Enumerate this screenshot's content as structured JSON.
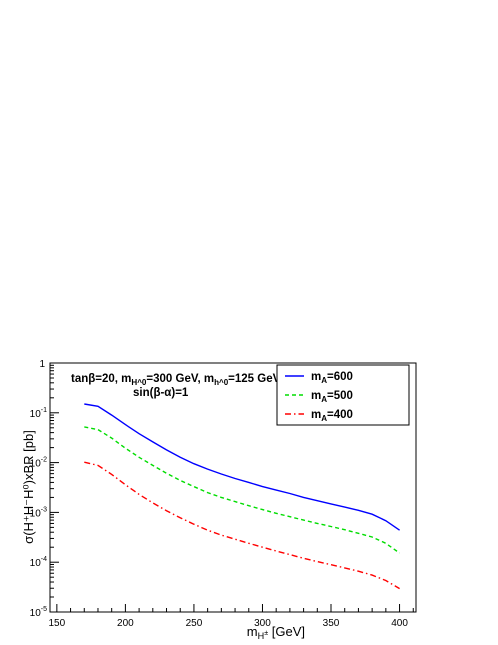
{
  "chart_data": {
    "type": "line",
    "xlabel": "m_{H^{±}} [GeV]",
    "ylabel": "σ(H⁺H⁻H⁰)xBR [pb]",
    "xlim": [
      145,
      412
    ],
    "ylim": [
      1e-05,
      1
    ],
    "yscale": "log",
    "xticks": [
      150,
      200,
      250,
      300,
      350,
      400
    ],
    "yticks": [
      {
        "value": 1,
        "base": "1",
        "exp": ""
      },
      {
        "value": 0.1,
        "base": "10",
        "exp": "-1"
      },
      {
        "value": 0.01,
        "base": "10",
        "exp": "-2"
      },
      {
        "value": 0.001,
        "base": "10",
        "exp": "-3"
      },
      {
        "value": 0.0001,
        "base": "10",
        "exp": "-4"
      },
      {
        "value": 1e-05,
        "base": "10",
        "exp": "-5"
      }
    ],
    "annotation": {
      "line1": "tanβ=20, m_{H^0}=300 GeV, m_{h^0}=125 GeV",
      "line2": "sin(β-α)=1"
    },
    "legend_position": "top-right",
    "series": [
      {
        "name": "m_A=600",
        "color": "#0000ff",
        "style": "solid",
        "x": [
          170,
          180,
          190,
          200,
          210,
          220,
          230,
          240,
          250,
          260,
          270,
          280,
          290,
          300,
          310,
          320,
          330,
          340,
          350,
          360,
          370,
          380,
          390,
          400
        ],
        "y": [
          0.15,
          0.135,
          0.09,
          0.058,
          0.038,
          0.026,
          0.018,
          0.0128,
          0.0095,
          0.0074,
          0.0059,
          0.0048,
          0.004,
          0.0033,
          0.0028,
          0.0024,
          0.002,
          0.00172,
          0.00148,
          0.00128,
          0.0011,
          0.00092,
          0.00068,
          0.00044
        ]
      },
      {
        "name": "m_A=500",
        "color": "#00dd00",
        "style": "dashed",
        "x": [
          170,
          180,
          190,
          200,
          210,
          220,
          230,
          240,
          250,
          260,
          270,
          280,
          290,
          300,
          310,
          320,
          330,
          340,
          350,
          360,
          370,
          380,
          390,
          400
        ],
        "y": [
          0.052,
          0.046,
          0.031,
          0.0195,
          0.0128,
          0.0088,
          0.0061,
          0.0044,
          0.0033,
          0.0025,
          0.002,
          0.00165,
          0.00136,
          0.00114,
          0.00096,
          0.00082,
          0.0007,
          0.0006,
          0.00052,
          0.00045,
          0.00038,
          0.00032,
          0.00024,
          0.000152
        ]
      },
      {
        "name": "m_A=400",
        "color": "#ff0000",
        "style": "dashdot",
        "x": [
          170,
          180,
          190,
          200,
          210,
          220,
          230,
          240,
          250,
          260,
          270,
          280,
          290,
          300,
          310,
          320,
          330,
          340,
          350,
          360,
          370,
          380,
          390,
          400
        ],
        "y": [
          0.0102,
          0.0088,
          0.0058,
          0.0036,
          0.0023,
          0.00155,
          0.00108,
          0.00078,
          0.00058,
          0.00044,
          0.00035,
          0.00029,
          0.00024,
          0.0002,
          0.000168,
          0.000142,
          0.00012,
          0.000103,
          8.9e-05,
          7.7e-05,
          6.6e-05,
          5.5e-05,
          4.3e-05,
          2.95e-05
        ]
      }
    ]
  }
}
